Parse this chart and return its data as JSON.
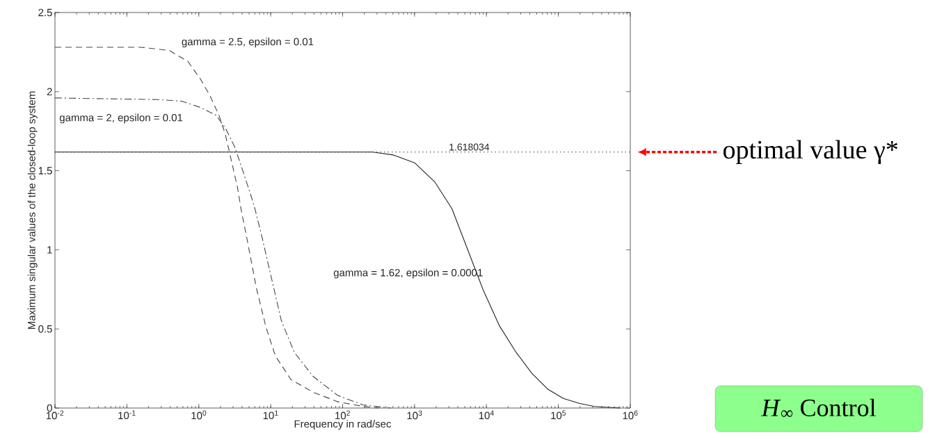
{
  "chart_data": {
    "type": "line",
    "xlabel": "Frequency in rad/sec",
    "ylabel": "Maximum singular values of the closed-loop system",
    "log": "x",
    "xlim": [
      0.01,
      1000000
    ],
    "xticks": [
      {
        "value": 0.01,
        "label": "10$^{-2}$"
      },
      {
        "value": 0.1,
        "label": "10$^{-1}$"
      },
      {
        "value": 1,
        "label": "10$^{0}$"
      },
      {
        "value": 10,
        "label": "10$^{1}$"
      },
      {
        "value": 100,
        "label": "10$^{2}$"
      },
      {
        "value": 1000,
        "label": "10$^{3}$"
      },
      {
        "value": 10000,
        "label": "10$^{4}$"
      },
      {
        "value": 100000,
        "label": "10$^{5}$"
      },
      {
        "value": 1000000,
        "label": "10$^{6}$"
      }
    ],
    "ylim": [
      0,
      2.5
    ],
    "yticks": [
      0,
      0.5,
      1,
      1.5,
      2,
      2.5
    ],
    "grid": false,
    "series": [
      {
        "name": "gamma = 2.5, epsilon = 0.01",
        "color": "#444444",
        "line_style": "dashed",
        "x": [
          0.01,
          0.158,
          0.389,
          0.708,
          1.05,
          1.41,
          1.91,
          2.34,
          2.69,
          3.47,
          3.86,
          4.72,
          6.31,
          8.61,
          11.6,
          19.1,
          38.9,
          85.1,
          191,
          316
        ],
        "values": [
          2.28,
          2.28,
          2.26,
          2.19,
          2.08,
          1.98,
          1.85,
          1.73,
          1.61,
          1.39,
          1.26,
          1.06,
          0.76,
          0.51,
          0.33,
          0.18,
          0.1,
          0.04,
          0.01,
          0
        ]
      },
      {
        "name": "gamma = 2, epsilon = 0.01",
        "color": "#444444",
        "line_style": "dashdot",
        "x": [
          0.01,
          0.257,
          0.575,
          1.05,
          1.74,
          2.34,
          3.16,
          3.89,
          5.25,
          6.03,
          7.76,
          10.5,
          14.1,
          21.4,
          38.9,
          85.1,
          191,
          468
        ],
        "values": [
          1.96,
          1.95,
          1.94,
          1.9,
          1.85,
          1.77,
          1.65,
          1.53,
          1.35,
          1.26,
          1.06,
          0.8,
          0.55,
          0.35,
          0.2,
          0.08,
          0.02,
          0
        ]
      },
      {
        "name": "gamma = 1.62, epsilon = 0.0001",
        "color": "#222222",
        "line_style": "solid",
        "x": [
          0.01,
          263,
          501,
          1000,
          1905,
          3311,
          7499,
          9120,
          15136,
          25119,
          42658,
          70795,
          117490,
          194984,
          316228,
          724436
        ],
        "values": [
          1.618,
          1.618,
          1.6,
          1.55,
          1.43,
          1.26,
          0.84,
          0.74,
          0.52,
          0.36,
          0.22,
          0.12,
          0.06,
          0.03,
          0.01,
          0
        ]
      }
    ],
    "ref_lines": [
      {
        "axis": "y",
        "value": 1.618034,
        "label": "1.618034",
        "color": "#333333",
        "line_style": "dotted"
      }
    ],
    "annotations": [
      "optimal value γ*",
      "*H*$_{∞}$ Control"
    ]
  }
}
